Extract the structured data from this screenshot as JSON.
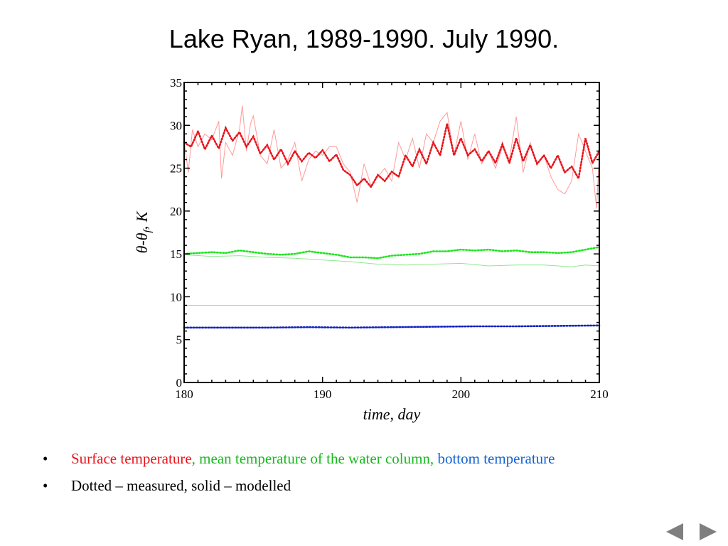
{
  "slide": {
    "title": "Lake Ryan, 1989-1990. July 1990."
  },
  "chart_data": {
    "type": "line",
    "title": "",
    "xlabel": "time, day",
    "ylabel_parts": [
      "θ",
      "-θ",
      "f",
      ", K"
    ],
    "xlim": [
      180,
      210
    ],
    "ylim": [
      0,
      35
    ],
    "x_ticks": [
      180,
      190,
      200,
      210
    ],
    "y_ticks": [
      0,
      5,
      10,
      15,
      20,
      25,
      30,
      35
    ],
    "grid": false,
    "legend": "none",
    "series": [
      {
        "color": "#ff9a9a",
        "style": "solid",
        "x": [
          180,
          180.3,
          180.6,
          181,
          181.5,
          182,
          182.5,
          182.7,
          183,
          183.5,
          184,
          184.2,
          184.5,
          184.8,
          185,
          185.5,
          186,
          186.5,
          187,
          187.5,
          188,
          188.5,
          189,
          189.5,
          190,
          190.5,
          191,
          191.5,
          192,
          192.5,
          193,
          193.5,
          194,
          194.5,
          195,
          195.5,
          196,
          196.5,
          197,
          197.5,
          198,
          198.5,
          199,
          199.5,
          200,
          200.5,
          201,
          201.5,
          202,
          202.5,
          203,
          203.5,
          204,
          204.5,
          205,
          205.5,
          206,
          206.5,
          207,
          207.5,
          208,
          208.5,
          209,
          209.5,
          209.8,
          210
        ],
        "y": [
          28.2,
          24.5,
          29.5,
          27.5,
          29,
          28.3,
          30.5,
          23.8,
          28,
          26.5,
          29.5,
          32.3,
          27,
          30.2,
          31.1,
          26.5,
          25.5,
          29.5,
          25,
          26,
          28,
          23.5,
          26,
          27,
          26.5,
          27.5,
          27.5,
          25.5,
          24.5,
          21,
          25.5,
          23,
          24,
          25,
          23.5,
          28,
          26,
          28.5,
          25,
          29,
          28,
          30.5,
          31.5,
          26.5,
          30.5,
          26,
          29,
          25.5,
          27,
          25,
          27.5,
          26,
          31,
          24.5,
          28,
          25.5,
          26.5,
          24,
          22.5,
          22,
          23.5,
          29,
          27,
          25,
          20.3,
          26.5
        ]
      },
      {
        "color": "#e8141b",
        "style": "dotted",
        "x": [
          180,
          180.5,
          181,
          181.5,
          182,
          182.5,
          183,
          183.5,
          184,
          184.5,
          185,
          185.5,
          186,
          186.5,
          187,
          187.5,
          188,
          188.5,
          189,
          189.5,
          190,
          190.5,
          191,
          191.5,
          192,
          192.5,
          193,
          193.5,
          194,
          194.5,
          195,
          195.5,
          196,
          196.5,
          197,
          197.5,
          198,
          198.5,
          199,
          199.5,
          200,
          200.5,
          201,
          201.5,
          202,
          202.5,
          203,
          203.5,
          204,
          204.5,
          205,
          205.5,
          206,
          206.5,
          207,
          207.5,
          208,
          208.5,
          209,
          209.5,
          210
        ],
        "y": [
          28,
          27.5,
          29.3,
          27.2,
          28.8,
          27.3,
          29.7,
          28.2,
          29.2,
          27.5,
          28.7,
          26.7,
          27.7,
          26,
          27.2,
          25.5,
          27,
          25.8,
          26.8,
          26.2,
          27.1,
          25.8,
          26.6,
          24.8,
          24.2,
          23,
          23.8,
          22.8,
          24.2,
          23.5,
          24.6,
          24,
          26.5,
          25.2,
          27.2,
          25.5,
          28,
          26.5,
          30.2,
          26.5,
          28.5,
          26.5,
          27.2,
          25.8,
          27,
          25.6,
          27.8,
          25.6,
          28.5,
          25.8,
          27.7,
          25.5,
          26.5,
          25,
          26.5,
          24.5,
          25.2,
          23.8,
          28.5,
          25.6,
          27
        ]
      },
      {
        "color": "#8fe88f",
        "style": "solid",
        "x": [
          180,
          182,
          184,
          186,
          188,
          190,
          192,
          194,
          196,
          198,
          200,
          202,
          204,
          206,
          208,
          209,
          210
        ],
        "y": [
          14.9,
          14.7,
          14.8,
          14.6,
          14.5,
          14.3,
          14.1,
          13.8,
          13.7,
          13.8,
          13.9,
          13.6,
          13.7,
          13.7,
          13.5,
          13.7,
          13.6
        ]
      },
      {
        "color": "#1fe51f",
        "style": "dotted",
        "x": [
          180,
          181,
          182,
          183,
          184,
          185,
          186,
          187,
          188,
          189,
          190,
          191,
          192,
          193,
          194,
          195,
          196,
          197,
          198,
          199,
          200,
          201,
          202,
          203,
          204,
          205,
          206,
          207,
          208,
          209,
          210
        ],
        "y": [
          15,
          15.1,
          15.2,
          15.1,
          15.4,
          15.2,
          15,
          14.9,
          15,
          15.3,
          15.1,
          14.9,
          14.6,
          14.6,
          14.5,
          14.8,
          14.9,
          15,
          15.3,
          15.3,
          15.5,
          15.4,
          15.5,
          15.3,
          15.4,
          15.2,
          15.2,
          15.1,
          15.2,
          15.5,
          15.8
        ]
      },
      {
        "color": "#b8c8f0",
        "style": "solid",
        "x": [
          180,
          210
        ],
        "y": [
          9,
          9
        ]
      },
      {
        "color": "#1020c0",
        "style": "dotted",
        "x": [
          180,
          183,
          186,
          189,
          192,
          195,
          198,
          201,
          204,
          207,
          210
        ],
        "y": [
          6.4,
          6.4,
          6.4,
          6.45,
          6.4,
          6.45,
          6.5,
          6.55,
          6.55,
          6.6,
          6.65
        ]
      }
    ]
  },
  "bullets": {
    "item1": {
      "part1": "Surface temperature",
      "part2": ", mean temperature of the water column,",
      "part3": " bottom temperature"
    },
    "item2": {
      "text": "Dotted – measured,  solid – modelled"
    }
  },
  "nav": {
    "prev_icon": "triangle-left",
    "next_icon": "triangle-right",
    "color": "#7f7f7f"
  }
}
